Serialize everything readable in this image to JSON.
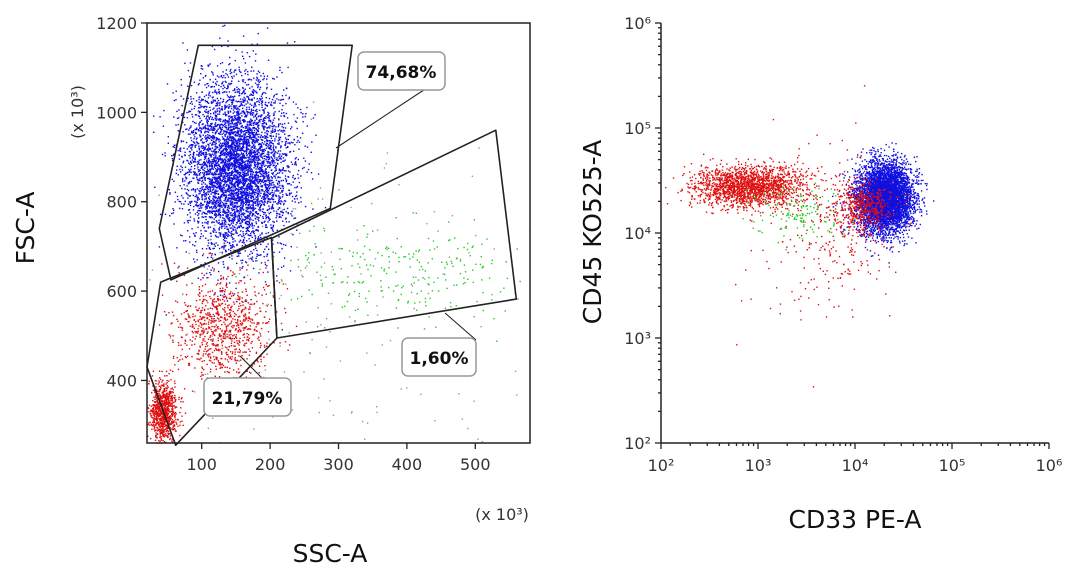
{
  "chart_data": [
    {
      "type": "scatter",
      "xlabel": "SSC-A",
      "ylabel": "FSC-A",
      "x_multiplier_label": "(x 10³)",
      "y_multiplier_label": "(x 10³)",
      "xlim": [
        20,
        580
      ],
      "ylim": [
        260,
        1200
      ],
      "x_ticks": [
        100,
        200,
        300,
        400,
        500
      ],
      "y_ticks": [
        400,
        600,
        800,
        1000,
        1200
      ],
      "grid": false,
      "colors": {
        "blue": "#1010e0",
        "red": "#e01010",
        "green": "#22cc22",
        "gray": "#9a9a9a"
      },
      "series": [
        {
          "color": "blue",
          "population": "74,68%",
          "center": [
            150,
            880
          ],
          "spread": [
            38,
            95
          ],
          "count": 5200
        },
        {
          "color": "red",
          "population": "21,79%",
          "center": [
            130,
            520
          ],
          "spread": [
            35,
            60
          ],
          "count": 900
        },
        {
          "color": "red",
          "population": "21,79%",
          "center": [
            42,
            330
          ],
          "spread": [
            10,
            35
          ],
          "count": 900
        },
        {
          "color": "green",
          "population": "1,60%",
          "center": [
            390,
            640
          ],
          "spread": [
            90,
            60
          ],
          "count": 260
        },
        {
          "color": "gray",
          "population": "",
          "center": [
            260,
            500
          ],
          "spread": [
            160,
            230
          ],
          "count": 220
        }
      ],
      "gates": [
        {
          "label": "74,68%",
          "vertices": [
            [
              95,
              1150
            ],
            [
              320,
              1150
            ],
            [
              288,
              785
            ],
            [
              55,
              625
            ],
            [
              38,
              740
            ]
          ]
        },
        {
          "label": "21,79%",
          "vertices": [
            [
              40,
              620
            ],
            [
              202,
              720
            ],
            [
              210,
              495
            ],
            [
              62,
              255
            ],
            [
              20,
              430
            ]
          ]
        },
        {
          "label": "1,60%",
          "vertices": [
            [
              202,
              718
            ],
            [
              530,
              960
            ],
            [
              560,
              582
            ],
            [
              210,
              495
            ]
          ]
        }
      ]
    },
    {
      "type": "scatter",
      "xlabel": "CD33 PE-A",
      "ylabel": "CD45 KO525-A",
      "x_scale": "log",
      "y_scale": "log",
      "xlim": [
        100,
        1000000
      ],
      "ylim": [
        100,
        1000000
      ],
      "x_ticks": [
        "10²",
        "10³",
        "10⁴",
        "10⁵",
        "10⁶"
      ],
      "y_ticks": [
        "10²",
        "10³",
        "10⁴",
        "10⁵",
        "10⁶"
      ],
      "grid": false,
      "series": [
        {
          "color": "red",
          "center": [
            800,
            28000
          ],
          "spread_decades": [
            0.28,
            0.1
          ],
          "count": 1800
        },
        {
          "color": "red",
          "center": [
            5000,
            9000
          ],
          "spread_decades": [
            0.35,
            0.45
          ],
          "count": 260
        },
        {
          "color": "green",
          "center": [
            2500,
            16000
          ],
          "spread_decades": [
            0.25,
            0.12
          ],
          "count": 140
        },
        {
          "color": "blue",
          "center": [
            20000,
            22000
          ],
          "spread_decades": [
            0.14,
            0.16
          ],
          "count": 5200
        },
        {
          "color": "red",
          "center": [
            12000,
            18000
          ],
          "spread_decades": [
            0.15,
            0.12
          ],
          "count": 500
        }
      ]
    }
  ]
}
